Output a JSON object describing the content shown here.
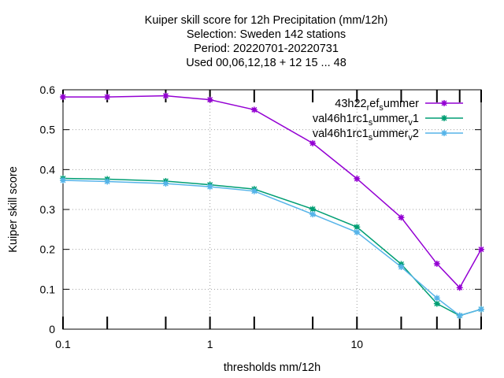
{
  "chart_data": {
    "type": "line",
    "title_lines": [
      "Kuiper skill score  for 12h Precipitation (mm/12h)",
      "Selection: Sweden     142 stations",
      "Period: 20220701-20220731",
      "Used  00,06,12,18  + 12 15 ... 48"
    ],
    "xlabel": "thresholds mm/12h",
    "ylabel": "Kuiper skill score",
    "x_scale": "log",
    "xlim": [
      0.1,
      70
    ],
    "ylim": [
      0,
      0.6
    ],
    "x_ticks": [
      {
        "value": 0.1,
        "label": "0.1"
      },
      {
        "value": 1,
        "label": "1"
      },
      {
        "value": 10,
        "label": "10"
      }
    ],
    "y_ticks": [
      {
        "value": 0,
        "label": "0"
      },
      {
        "value": 0.1,
        "label": "0.1"
      },
      {
        "value": 0.2,
        "label": "0.2"
      },
      {
        "value": 0.3,
        "label": "0.3"
      },
      {
        "value": 0.4,
        "label": "0.4"
      },
      {
        "value": 0.5,
        "label": "0.5"
      },
      {
        "value": 0.6,
        "label": "0.6"
      }
    ],
    "grid": true,
    "legend_position": "top-right",
    "x": [
      0.1,
      0.2,
      0.5,
      1,
      2,
      5,
      10,
      20,
      35,
      50,
      70
    ],
    "series": [
      {
        "name": "43h22",
        "name_sub1": "ref",
        "name_sub2": "ummer",
        "legend_parts": [
          {
            "text": "43h22",
            "sub": false
          },
          {
            "text": "r",
            "sub": true
          },
          {
            "text": "ef",
            "sub": false
          },
          {
            "text": "s",
            "sub": true
          },
          {
            "text": "ummer",
            "sub": false
          }
        ],
        "color": "#9400d3",
        "values": [
          0.582,
          0.582,
          0.585,
          0.575,
          0.55,
          0.466,
          0.377,
          0.28,
          0.164,
          0.104,
          0.2
        ]
      },
      {
        "legend_parts": [
          {
            "text": "val46h1rc1",
            "sub": false
          },
          {
            "text": "s",
            "sub": true
          },
          {
            "text": "ummer",
            "sub": false
          },
          {
            "text": "v",
            "sub": true
          },
          {
            "text": "1",
            "sub": false
          }
        ],
        "color": "#009e73",
        "values": [
          0.378,
          0.376,
          0.371,
          0.362,
          0.351,
          0.301,
          0.256,
          0.163,
          0.064,
          0.034,
          0.05
        ]
      },
      {
        "legend_parts": [
          {
            "text": "val46h1rc1",
            "sub": false
          },
          {
            "text": "s",
            "sub": true
          },
          {
            "text": "ummer",
            "sub": false
          },
          {
            "text": "v",
            "sub": true
          },
          {
            "text": "2",
            "sub": false
          }
        ],
        "color": "#56b4e9",
        "values": [
          0.373,
          0.37,
          0.365,
          0.357,
          0.346,
          0.288,
          0.243,
          0.156,
          0.078,
          0.034,
          0.05
        ]
      }
    ]
  }
}
